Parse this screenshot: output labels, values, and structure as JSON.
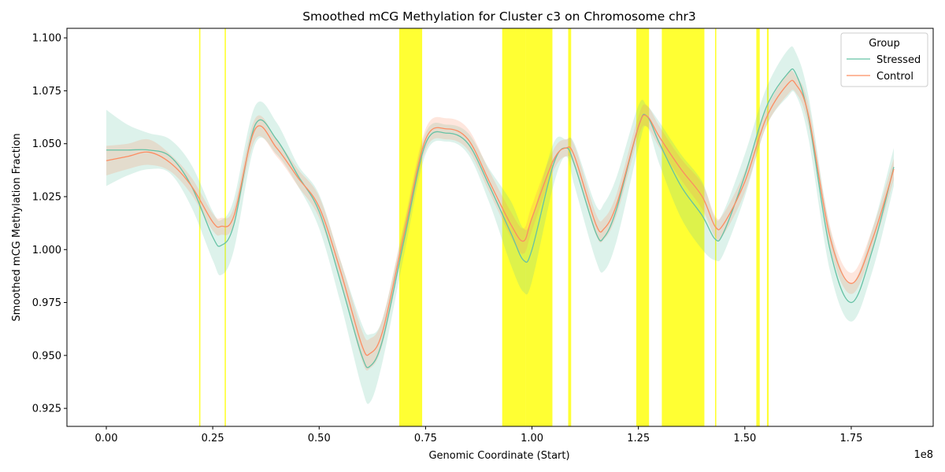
{
  "chart_data": {
    "type": "line",
    "title": "Smoothed mCG Methylation for Cluster c3 on Chromosome chr3",
    "xlabel": "Genomic Coordinate (Start)",
    "ylabel": "Smoothed mCG Methylation Fraction",
    "x_offset_label": "1e8",
    "xlim": [
      -0.0925,
      1.9425
    ],
    "ylim": [
      0.9165,
      1.1045
    ],
    "x_ticks": [
      0.0,
      0.25,
      0.5,
      0.75,
      1.0,
      1.25,
      1.5,
      1.75
    ],
    "x_tick_labels": [
      "0.00",
      "0.25",
      "0.50",
      "0.75",
      "1.00",
      "1.25",
      "1.50",
      "1.75"
    ],
    "y_ticks": [
      0.925,
      0.95,
      0.975,
      1.0,
      1.025,
      1.05,
      1.075,
      1.1
    ],
    "y_tick_labels": [
      "0.925",
      "0.950",
      "0.975",
      "1.000",
      "1.025",
      "1.050",
      "1.075",
      "1.100"
    ],
    "grid": false,
    "legend": {
      "title": "Group",
      "placement": "top-right"
    },
    "highlight_color": "#ffff00",
    "highlight_regions": [
      [
        0.218,
        0.221
      ],
      [
        0.278,
        0.281
      ],
      [
        0.688,
        0.742
      ],
      [
        0.93,
        0.985
      ],
      [
        0.985,
        1.048
      ],
      [
        1.085,
        1.092
      ],
      [
        1.245,
        1.275
      ],
      [
        1.305,
        1.405
      ],
      [
        1.43,
        1.433
      ],
      [
        1.527,
        1.535
      ],
      [
        1.552,
        1.556
      ]
    ],
    "series": [
      {
        "name": "Stressed",
        "color": "#66c2a5",
        "band_color": "#66c2a5",
        "x": [
          0.0,
          0.05,
          0.1,
          0.15,
          0.2,
          0.25,
          0.27,
          0.3,
          0.35,
          0.4,
          0.45,
          0.5,
          0.55,
          0.6,
          0.62,
          0.65,
          0.7,
          0.75,
          0.8,
          0.85,
          0.9,
          0.95,
          0.98,
          1.0,
          1.05,
          1.08,
          1.1,
          1.15,
          1.17,
          1.2,
          1.25,
          1.27,
          1.3,
          1.35,
          1.4,
          1.43,
          1.45,
          1.5,
          1.55,
          1.6,
          1.62,
          1.65,
          1.7,
          1.75,
          1.8,
          1.85
        ],
        "y": [
          1.047,
          1.047,
          1.047,
          1.044,
          1.03,
          1.006,
          1.002,
          1.012,
          1.059,
          1.052,
          1.035,
          1.018,
          0.985,
          0.95,
          0.945,
          0.958,
          1.005,
          1.05,
          1.055,
          1.05,
          1.03,
          1.008,
          0.995,
          1.0,
          1.04,
          1.048,
          1.04,
          1.008,
          1.006,
          1.02,
          1.058,
          1.063,
          1.05,
          1.03,
          1.016,
          1.005,
          1.008,
          1.035,
          1.067,
          1.083,
          1.083,
          1.062,
          1.0,
          0.975,
          1.0,
          1.039
        ],
        "lower": [
          1.03,
          1.035,
          1.038,
          1.036,
          1.02,
          0.995,
          0.988,
          1.0,
          1.05,
          1.045,
          1.03,
          1.01,
          0.975,
          0.935,
          0.928,
          0.948,
          0.998,
          1.045,
          1.051,
          1.045,
          1.022,
          0.993,
          0.98,
          0.985,
          1.03,
          1.044,
          1.03,
          0.995,
          0.99,
          1.005,
          1.048,
          1.058,
          1.04,
          1.015,
          1.0,
          0.995,
          0.998,
          1.025,
          1.058,
          1.072,
          1.073,
          1.052,
          0.99,
          0.966,
          0.99,
          1.03
        ],
        "upper": [
          1.066,
          1.059,
          1.055,
          1.052,
          1.04,
          1.018,
          1.014,
          1.024,
          1.068,
          1.06,
          1.04,
          1.026,
          0.995,
          0.965,
          0.96,
          0.968,
          1.012,
          1.055,
          1.059,
          1.055,
          1.038,
          1.023,
          1.01,
          1.015,
          1.05,
          1.052,
          1.05,
          1.021,
          1.022,
          1.035,
          1.068,
          1.068,
          1.06,
          1.045,
          1.032,
          1.015,
          1.018,
          1.045,
          1.076,
          1.094,
          1.093,
          1.072,
          1.01,
          0.984,
          1.01,
          1.048
        ]
      },
      {
        "name": "Control",
        "color": "#fc8d62",
        "band_color": "#fc8d62",
        "x": [
          0.0,
          0.05,
          0.1,
          0.15,
          0.2,
          0.25,
          0.27,
          0.3,
          0.35,
          0.4,
          0.45,
          0.5,
          0.55,
          0.6,
          0.62,
          0.65,
          0.7,
          0.75,
          0.8,
          0.85,
          0.9,
          0.95,
          0.98,
          1.0,
          1.05,
          1.08,
          1.1,
          1.15,
          1.17,
          1.2,
          1.25,
          1.27,
          1.3,
          1.35,
          1.4,
          1.43,
          1.45,
          1.5,
          1.55,
          1.6,
          1.62,
          1.65,
          1.7,
          1.75,
          1.8,
          1.85
        ],
        "y": [
          1.042,
          1.044,
          1.046,
          1.041,
          1.03,
          1.013,
          1.011,
          1.016,
          1.057,
          1.048,
          1.034,
          1.02,
          0.99,
          0.955,
          0.951,
          0.962,
          1.008,
          1.052,
          1.057,
          1.052,
          1.032,
          1.012,
          1.004,
          1.015,
          1.042,
          1.048,
          1.044,
          1.012,
          1.01,
          1.022,
          1.058,
          1.063,
          1.053,
          1.038,
          1.025,
          1.011,
          1.012,
          1.032,
          1.062,
          1.078,
          1.078,
          1.063,
          1.006,
          0.984,
          1.005,
          1.038
        ],
        "lower": [
          1.035,
          1.038,
          1.04,
          1.037,
          1.026,
          1.009,
          1.007,
          1.012,
          1.052,
          1.044,
          1.03,
          1.015,
          0.985,
          0.948,
          0.944,
          0.956,
          1.003,
          1.047,
          1.052,
          1.047,
          1.027,
          1.006,
          0.998,
          1.009,
          1.037,
          1.044,
          1.039,
          1.007,
          1.005,
          1.017,
          1.053,
          1.058,
          1.048,
          1.033,
          1.019,
          1.006,
          1.007,
          1.027,
          1.058,
          1.073,
          1.074,
          1.058,
          1.001,
          0.979,
          1.0,
          1.033
        ],
        "upper": [
          1.049,
          1.05,
          1.052,
          1.045,
          1.034,
          1.017,
          1.015,
          1.02,
          1.062,
          1.052,
          1.038,
          1.025,
          0.995,
          0.962,
          0.958,
          0.968,
          1.013,
          1.057,
          1.062,
          1.057,
          1.037,
          1.018,
          1.01,
          1.021,
          1.047,
          1.052,
          1.049,
          1.017,
          1.015,
          1.027,
          1.063,
          1.068,
          1.058,
          1.043,
          1.031,
          1.016,
          1.017,
          1.037,
          1.066,
          1.083,
          1.082,
          1.068,
          1.011,
          0.989,
          1.01,
          1.043
        ]
      }
    ]
  }
}
